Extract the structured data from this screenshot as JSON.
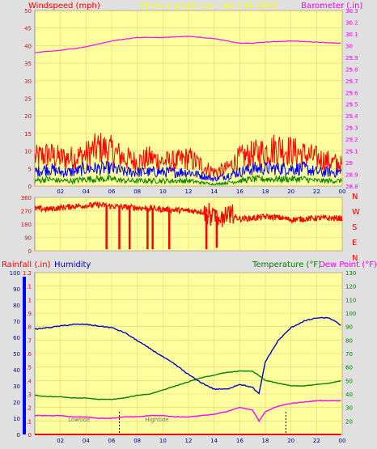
{
  "header": {
    "left_label": "Windspeed (mph)",
    "title": "24 hour graph day - April 11 2022",
    "right_label": "Barometer (.in)"
  },
  "legend": {
    "rainfall_label": "Rainfall (.in)",
    "humidity_label": "Humidity",
    "temperature_label": "Temperature (°F)",
    "dewpoint_label": "Dew Point (°F)"
  },
  "tide_labels": {
    "low": "Lowtide",
    "high": "Hightide"
  },
  "colors": {
    "plot_bg": "#ffffa0",
    "frame_bg": "#e0e0e0",
    "wind_max": "#ff0000",
    "wind_avg": "#0000ff",
    "wind_min": "#008000",
    "barometer": "#ff00ff",
    "direction": "#ff0000",
    "rainfall": "#ff0000",
    "humidity": "#0000cc",
    "temperature": "#008000",
    "dewpoint": "#ff00ff"
  },
  "x_ticks": [
    "02",
    "04",
    "06",
    "08",
    "10",
    "12",
    "14",
    "16",
    "18",
    "20",
    "22",
    "00"
  ],
  "chart_data": [
    {
      "type": "line",
      "name": "wind_barometer",
      "xlim": [
        0,
        24
      ],
      "ylim_left": [
        0,
        50
      ],
      "ylim_right": [
        28.8,
        30.3
      ],
      "yticks_left": [
        "0",
        "5",
        "10",
        "15",
        "20",
        "25",
        "30",
        "35",
        "40",
        "45",
        "50"
      ],
      "yticks_right": [
        "28.8",
        "28.9",
        "29",
        "29.1",
        "29.2",
        "29.3",
        "29.4",
        "29.5",
        "29.6",
        "29.7",
        "29.8",
        "29.9",
        "30",
        "30.1",
        "30.2",
        "30.3"
      ],
      "series": [
        {
          "name": "Windspeed (mph)",
          "key": "wind_max",
          "axis": "left",
          "x": [
            0,
            1,
            2,
            3,
            4,
            5,
            6,
            7,
            8,
            9,
            10,
            11,
            12,
            13,
            14,
            15,
            16,
            17,
            18,
            19,
            20,
            21,
            22,
            23,
            24
          ],
          "y": [
            8,
            9,
            8,
            8,
            9,
            11,
            10,
            8,
            7,
            8,
            7,
            7,
            8,
            6,
            4,
            5,
            8,
            9,
            10,
            11,
            10,
            9,
            8,
            7,
            6
          ]
        },
        {
          "name": "",
          "key": "wind_avg",
          "axis": "left",
          "x": [
            0,
            1,
            2,
            3,
            4,
            5,
            6,
            7,
            8,
            9,
            10,
            11,
            12,
            13,
            14,
            15,
            16,
            17,
            18,
            19,
            20,
            21,
            22,
            23,
            24
          ],
          "y": [
            4,
            5,
            4,
            4,
            5,
            5,
            5,
            4,
            4,
            4,
            4,
            4,
            4,
            3,
            2,
            3,
            4,
            5,
            5,
            5,
            5,
            5,
            4,
            4,
            4
          ]
        },
        {
          "name": "",
          "key": "wind_min",
          "axis": "left",
          "x": [
            0,
            1,
            2,
            3,
            4,
            5,
            6,
            7,
            8,
            9,
            10,
            11,
            12,
            13,
            14,
            15,
            16,
            17,
            18,
            19,
            20,
            21,
            22,
            23,
            24
          ],
          "y": [
            1.5,
            2,
            1.5,
            1.5,
            2,
            2,
            2,
            1.5,
            1.5,
            1.5,
            1.5,
            1.5,
            1.5,
            1,
            0.5,
            1,
            1.5,
            2,
            2,
            2,
            2,
            2,
            1.5,
            1.5,
            1.5
          ]
        },
        {
          "name": "Barometer (.in)",
          "key": "barometer",
          "axis": "right",
          "x": [
            0,
            2,
            4,
            6,
            8,
            10,
            12,
            13,
            14,
            15,
            16,
            17,
            18,
            20,
            22,
            24
          ],
          "y": [
            29.94,
            29.96,
            29.99,
            30.04,
            30.07,
            30.07,
            30.08,
            30.07,
            30.06,
            30.04,
            30.02,
            30.02,
            30.03,
            30.04,
            30.03,
            30.02
          ]
        }
      ]
    },
    {
      "type": "line",
      "name": "wind_direction",
      "xlim": [
        0,
        24
      ],
      "ylim": [
        0,
        360
      ],
      "yticks": [
        "0",
        "90",
        "180",
        "270",
        "360"
      ],
      "compass_labels": [
        "N",
        "W",
        "S",
        "E",
        "N"
      ],
      "series": [
        {
          "name": "",
          "key": "direction",
          "x": [
            0,
            1,
            2,
            3,
            4,
            5,
            6,
            7,
            8,
            9,
            10,
            11,
            12,
            13,
            14,
            15,
            16,
            17,
            18,
            19,
            20,
            21,
            22,
            23,
            24
          ],
          "y": [
            285,
            280,
            290,
            300,
            305,
            310,
            300,
            295,
            290,
            285,
            280,
            275,
            270,
            265,
            230,
            250,
            215,
            220,
            230,
            225,
            210,
            215,
            220,
            220,
            220
          ]
        }
      ],
      "dropouts": [
        {
          "x": 5.6,
          "y": 10
        },
        {
          "x": 6.6,
          "y": 10
        },
        {
          "x": 7.4,
          "y": 10
        },
        {
          "x": 8.8,
          "y": 10
        },
        {
          "x": 9.2,
          "y": 10
        },
        {
          "x": 10.5,
          "y": 10
        },
        {
          "x": 13.4,
          "y": 10
        },
        {
          "x": 14.2,
          "y": 20
        }
      ]
    },
    {
      "type": "line",
      "name": "humidity_temperature",
      "xlim": [
        0,
        24
      ],
      "ylim_left": [
        0,
        100
      ],
      "ylim_right": [
        10,
        130
      ],
      "yticks_left": [
        "0",
        "10",
        "20",
        "30",
        "40",
        "50",
        "60",
        "70",
        "80",
        "90",
        "100"
      ],
      "yticks_rain": [
        "0",
        "0.1",
        "0.2",
        "0.3",
        "0.4",
        "0.5",
        "0.6",
        "0.7",
        "0.8",
        "0.9",
        "1",
        "1.1",
        "1.2"
      ],
      "yticks_right": [
        "20",
        "30",
        "40",
        "50",
        "60",
        "70",
        "80",
        "90",
        "100",
        "110",
        "120",
        "130"
      ],
      "series": [
        {
          "name": "Humidity",
          "key": "humidity",
          "axis": "left",
          "x": [
            0,
            1,
            2,
            3,
            4,
            5,
            6,
            7,
            8,
            9,
            10,
            11,
            12,
            13,
            14,
            15,
            16,
            17,
            17.5,
            18,
            19,
            20,
            21,
            22,
            23,
            24
          ],
          "y": [
            65,
            66,
            67,
            68,
            68,
            67,
            66,
            63,
            58,
            53,
            48,
            43,
            37,
            32,
            28,
            28,
            31,
            29,
            25,
            45,
            58,
            66,
            70,
            72,
            72,
            67
          ]
        },
        {
          "name": "Temperature (°F)",
          "key": "temperature",
          "axis": "right",
          "x": [
            0,
            1,
            2,
            3,
            4,
            5,
            6,
            7,
            8,
            9,
            10,
            11,
            12,
            13,
            14,
            15,
            16,
            17,
            18,
            19,
            20,
            21,
            22,
            23,
            24
          ],
          "y": [
            39,
            38,
            38,
            37,
            37,
            36,
            36,
            37,
            39,
            40,
            43,
            46,
            49,
            52,
            54,
            56,
            57,
            57,
            50,
            48,
            46,
            46,
            47,
            48,
            50
          ]
        },
        {
          "name": "Dew Point (°F)",
          "key": "dewpoint",
          "axis": "right",
          "x": [
            0,
            1,
            2,
            3,
            4,
            5,
            6,
            7,
            8,
            9,
            10,
            11,
            12,
            13,
            14,
            15,
            16,
            17,
            17.5,
            18,
            19,
            20,
            21,
            22,
            23,
            24
          ],
          "y": [
            24,
            24,
            24,
            23,
            23,
            22,
            22,
            23,
            23,
            24,
            24,
            23,
            23,
            24,
            25,
            27,
            30,
            28,
            20,
            27,
            31,
            33,
            34,
            35,
            35,
            35
          ]
        },
        {
          "name": "Rainfall (.in)",
          "key": "rainfall",
          "axis": "rain",
          "x": [
            0,
            24
          ],
          "y": [
            0,
            0
          ]
        }
      ],
      "tides": [
        {
          "label": "Lowtide",
          "x": 2.6
        },
        {
          "label": "Hightide",
          "x": 8.6
        }
      ],
      "tide_markers_x": [
        6.6,
        19.6
      ]
    }
  ]
}
